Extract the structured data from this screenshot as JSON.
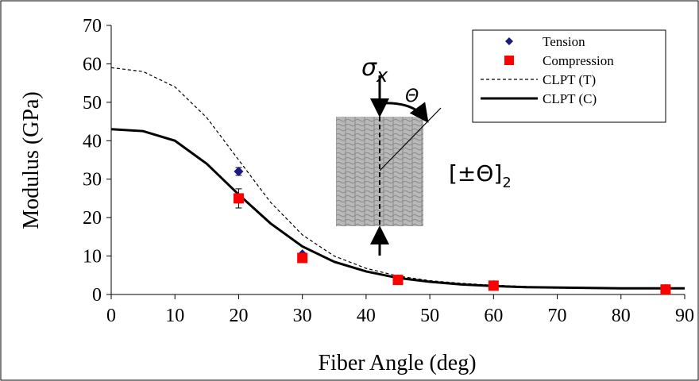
{
  "chart_data": {
    "type": "line",
    "xlabel": "Fiber Angle (deg)",
    "ylabel": "Modulus (GPa)",
    "xlim": [
      0,
      90
    ],
    "ylim": [
      0,
      70
    ],
    "xticks": [
      0,
      10,
      20,
      30,
      40,
      50,
      60,
      70,
      80,
      90
    ],
    "yticks": [
      0,
      10,
      20,
      30,
      40,
      50,
      60,
      70
    ],
    "legend": "top-right",
    "series": [
      {
        "name": "Tension",
        "color": "#1a1a80",
        "mode": "markers",
        "marker": "diamond",
        "x": [
          20,
          30,
          45,
          60,
          87
        ],
        "values": [
          32,
          10.5,
          4,
          2.5,
          1.5
        ],
        "errors": [
          1,
          null,
          null,
          null,
          null
        ]
      },
      {
        "name": "Compression",
        "color": "#ff0000",
        "mode": "markers",
        "marker": "square",
        "x": [
          20,
          30,
          45,
          60,
          87
        ],
        "values": [
          25,
          9.5,
          3.8,
          2.3,
          1.3
        ],
        "errors": [
          2.5,
          null,
          null,
          null,
          null
        ]
      },
      {
        "name": "CLPT (T)",
        "color": "#000000",
        "mode": "line",
        "dash": true,
        "x": [
          0,
          5,
          10,
          15,
          20,
          25,
          30,
          35,
          40,
          45,
          50,
          55,
          60,
          65,
          70,
          75,
          80,
          85,
          90
        ],
        "values": [
          59,
          58,
          54,
          46,
          35,
          24,
          15.5,
          10,
          6.8,
          4.8,
          3.6,
          2.9,
          2.4,
          2.1,
          1.9,
          1.8,
          1.7,
          1.7,
          1.7
        ]
      },
      {
        "name": "CLPT (C)",
        "color": "#000000",
        "mode": "line",
        "dash": false,
        "x": [
          0,
          5,
          10,
          15,
          20,
          25,
          30,
          35,
          40,
          45,
          50,
          55,
          60,
          65,
          70,
          75,
          80,
          85,
          90
        ],
        "values": [
          43,
          42.5,
          40,
          34,
          26,
          18.5,
          12.5,
          8.5,
          6,
          4.3,
          3.3,
          2.6,
          2.2,
          1.9,
          1.8,
          1.7,
          1.6,
          1.6,
          1.6
        ]
      }
    ],
    "annotations": {
      "stress": "σ",
      "stress_sub": "x",
      "angle": "Θ",
      "layup": "[±Θ]",
      "layup_sub": "2"
    }
  }
}
